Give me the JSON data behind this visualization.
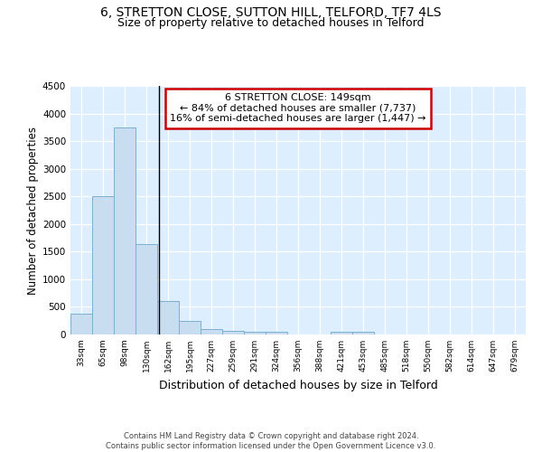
{
  "title1": "6, STRETTON CLOSE, SUTTON HILL, TELFORD, TF7 4LS",
  "title2": "Size of property relative to detached houses in Telford",
  "xlabel": "Distribution of detached houses by size in Telford",
  "ylabel": "Number of detached properties",
  "categories": [
    "33sqm",
    "65sqm",
    "98sqm",
    "130sqm",
    "162sqm",
    "195sqm",
    "227sqm",
    "259sqm",
    "291sqm",
    "324sqm",
    "356sqm",
    "388sqm",
    "421sqm",
    "453sqm",
    "485sqm",
    "518sqm",
    "550sqm",
    "582sqm",
    "614sqm",
    "647sqm",
    "679sqm"
  ],
  "values": [
    380,
    2500,
    3750,
    1640,
    600,
    240,
    100,
    60,
    50,
    45,
    0,
    0,
    55,
    50,
    0,
    0,
    0,
    0,
    0,
    0,
    0
  ],
  "bar_color": "#c8ddf0",
  "bar_edge_color": "#7bafd4",
  "vline_color": "#000000",
  "annotation_line1": "6 STRETTON CLOSE: 149sqm",
  "annotation_line2": "← 84% of detached houses are smaller (7,737)",
  "annotation_line3": "16% of semi-detached houses are larger (1,447) →",
  "annotation_box_color": "#ffffff",
  "annotation_box_edge": "#cc0000",
  "ylim": [
    0,
    4500
  ],
  "yticks": [
    0,
    500,
    1000,
    1500,
    2000,
    2500,
    3000,
    3500,
    4000,
    4500
  ],
  "background_color": "#ddeeff",
  "footer_text": "Contains HM Land Registry data © Crown copyright and database right 2024.\nContains public sector information licensed under the Open Government Licence v3.0.",
  "title1_fontsize": 10,
  "title2_fontsize": 9,
  "ylabel_fontsize": 8.5,
  "xlabel_fontsize": 9
}
